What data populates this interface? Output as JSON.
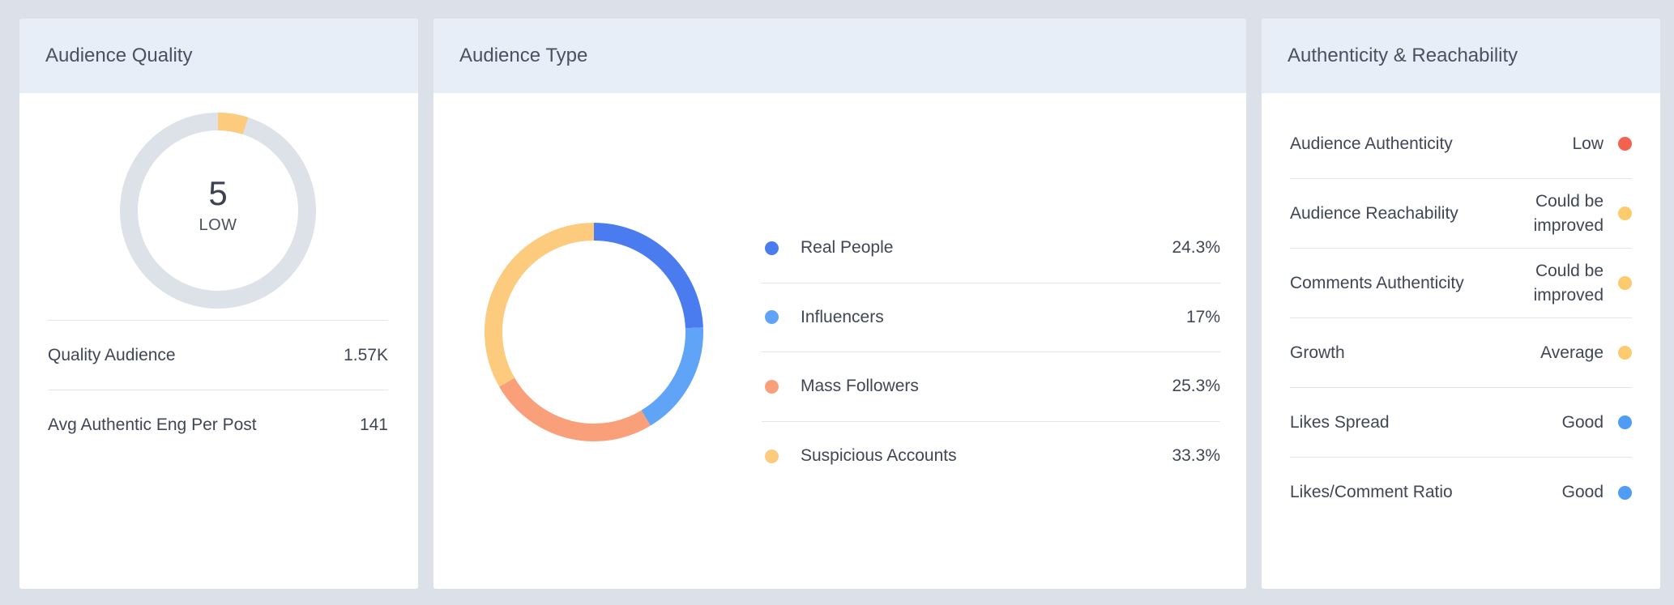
{
  "colors": {
    "real_people": "#4a7cf0",
    "influencers": "#5fa4f7",
    "mass_followers": "#f9a07a",
    "suspicious": "#fdcb7d",
    "track": "#dde1e8",
    "status_low": "#f2624e",
    "status_mid": "#fdcb6e",
    "status_good": "#4e9cf5"
  },
  "quality": {
    "title": "Audience Quality",
    "score": "5",
    "score_label": "LOW",
    "score_fraction": 0.05,
    "stats": [
      {
        "label": "Quality Audience",
        "value": "1.57K"
      },
      {
        "label": "Avg Authentic Eng Per Post",
        "value": "141"
      }
    ]
  },
  "audience_type": {
    "title": "Audience Type",
    "items": [
      {
        "label": "Real People",
        "value": "24.3%",
        "percent": 24.3,
        "color": "#4a7cf0"
      },
      {
        "label": "Influencers",
        "value": "17%",
        "percent": 17,
        "color": "#5fa4f7"
      },
      {
        "label": "Mass Followers",
        "value": "25.3%",
        "percent": 25.3,
        "color": "#f9a07a"
      },
      {
        "label": "Suspicious Accounts",
        "value": "33.3%",
        "percent": 33.3,
        "color": "#fdcb7d"
      }
    ]
  },
  "authenticity": {
    "title": "Authenticity & Reachability",
    "items": [
      {
        "label": "Audience Authenticity",
        "status": "Low",
        "color": "#f2624e"
      },
      {
        "label": "Audience Reachability",
        "status": "Could be\nimproved",
        "color": "#fdcb6e"
      },
      {
        "label": "Comments Authenticity",
        "status": "Could be\nimproved",
        "color": "#fdcb6e"
      },
      {
        "label": "Growth",
        "status": "Average",
        "color": "#fdcb6e"
      },
      {
        "label": "Likes Spread",
        "status": "Good",
        "color": "#4e9cf5"
      },
      {
        "label": "Likes/Comment Ratio",
        "status": "Good",
        "color": "#4e9cf5"
      }
    ]
  }
}
